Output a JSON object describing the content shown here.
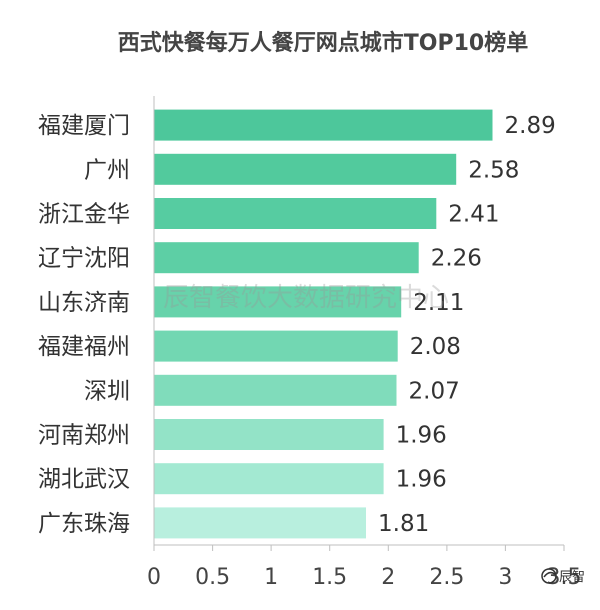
{
  "chart_data": {
    "type": "bar",
    "orientation": "horizontal",
    "title": "西式快餐每万人餐厅网点城市TOP10榜单",
    "categories": [
      "福建厦门",
      "广州",
      "浙江金华",
      "辽宁沈阳",
      "山东济南",
      "福建福州",
      "深圳",
      "河南郑州",
      "湖北武汉",
      "广东珠海"
    ],
    "values": [
      2.89,
      2.58,
      2.41,
      2.26,
      2.11,
      2.08,
      2.07,
      1.96,
      1.96,
      1.81
    ],
    "value_labels": [
      "2.89",
      "2.58",
      "2.41",
      "2.26",
      "2.11",
      "2.08",
      "2.07",
      "1.96",
      "1.96",
      "1.81"
    ],
    "x_ticks": [
      "0",
      "0.5",
      "1",
      "1.5",
      "2",
      "2.5",
      "3",
      "3.5"
    ],
    "xlim": [
      0,
      3.5
    ],
    "bar_colors": [
      "#4DC79B",
      "#52CA9D",
      "#56CCA1",
      "#5DCFA5",
      "#67D3AB",
      "#72D7B2",
      "#80DCBB",
      "#93E3C7",
      "#A3E9D2",
      "#B8EFDE"
    ],
    "grid": false,
    "legend": "none"
  },
  "watermark": "辰智餐饮大数据研究中心",
  "logo": {
    "text": "辰智",
    "icon": "bird-logo-icon"
  }
}
